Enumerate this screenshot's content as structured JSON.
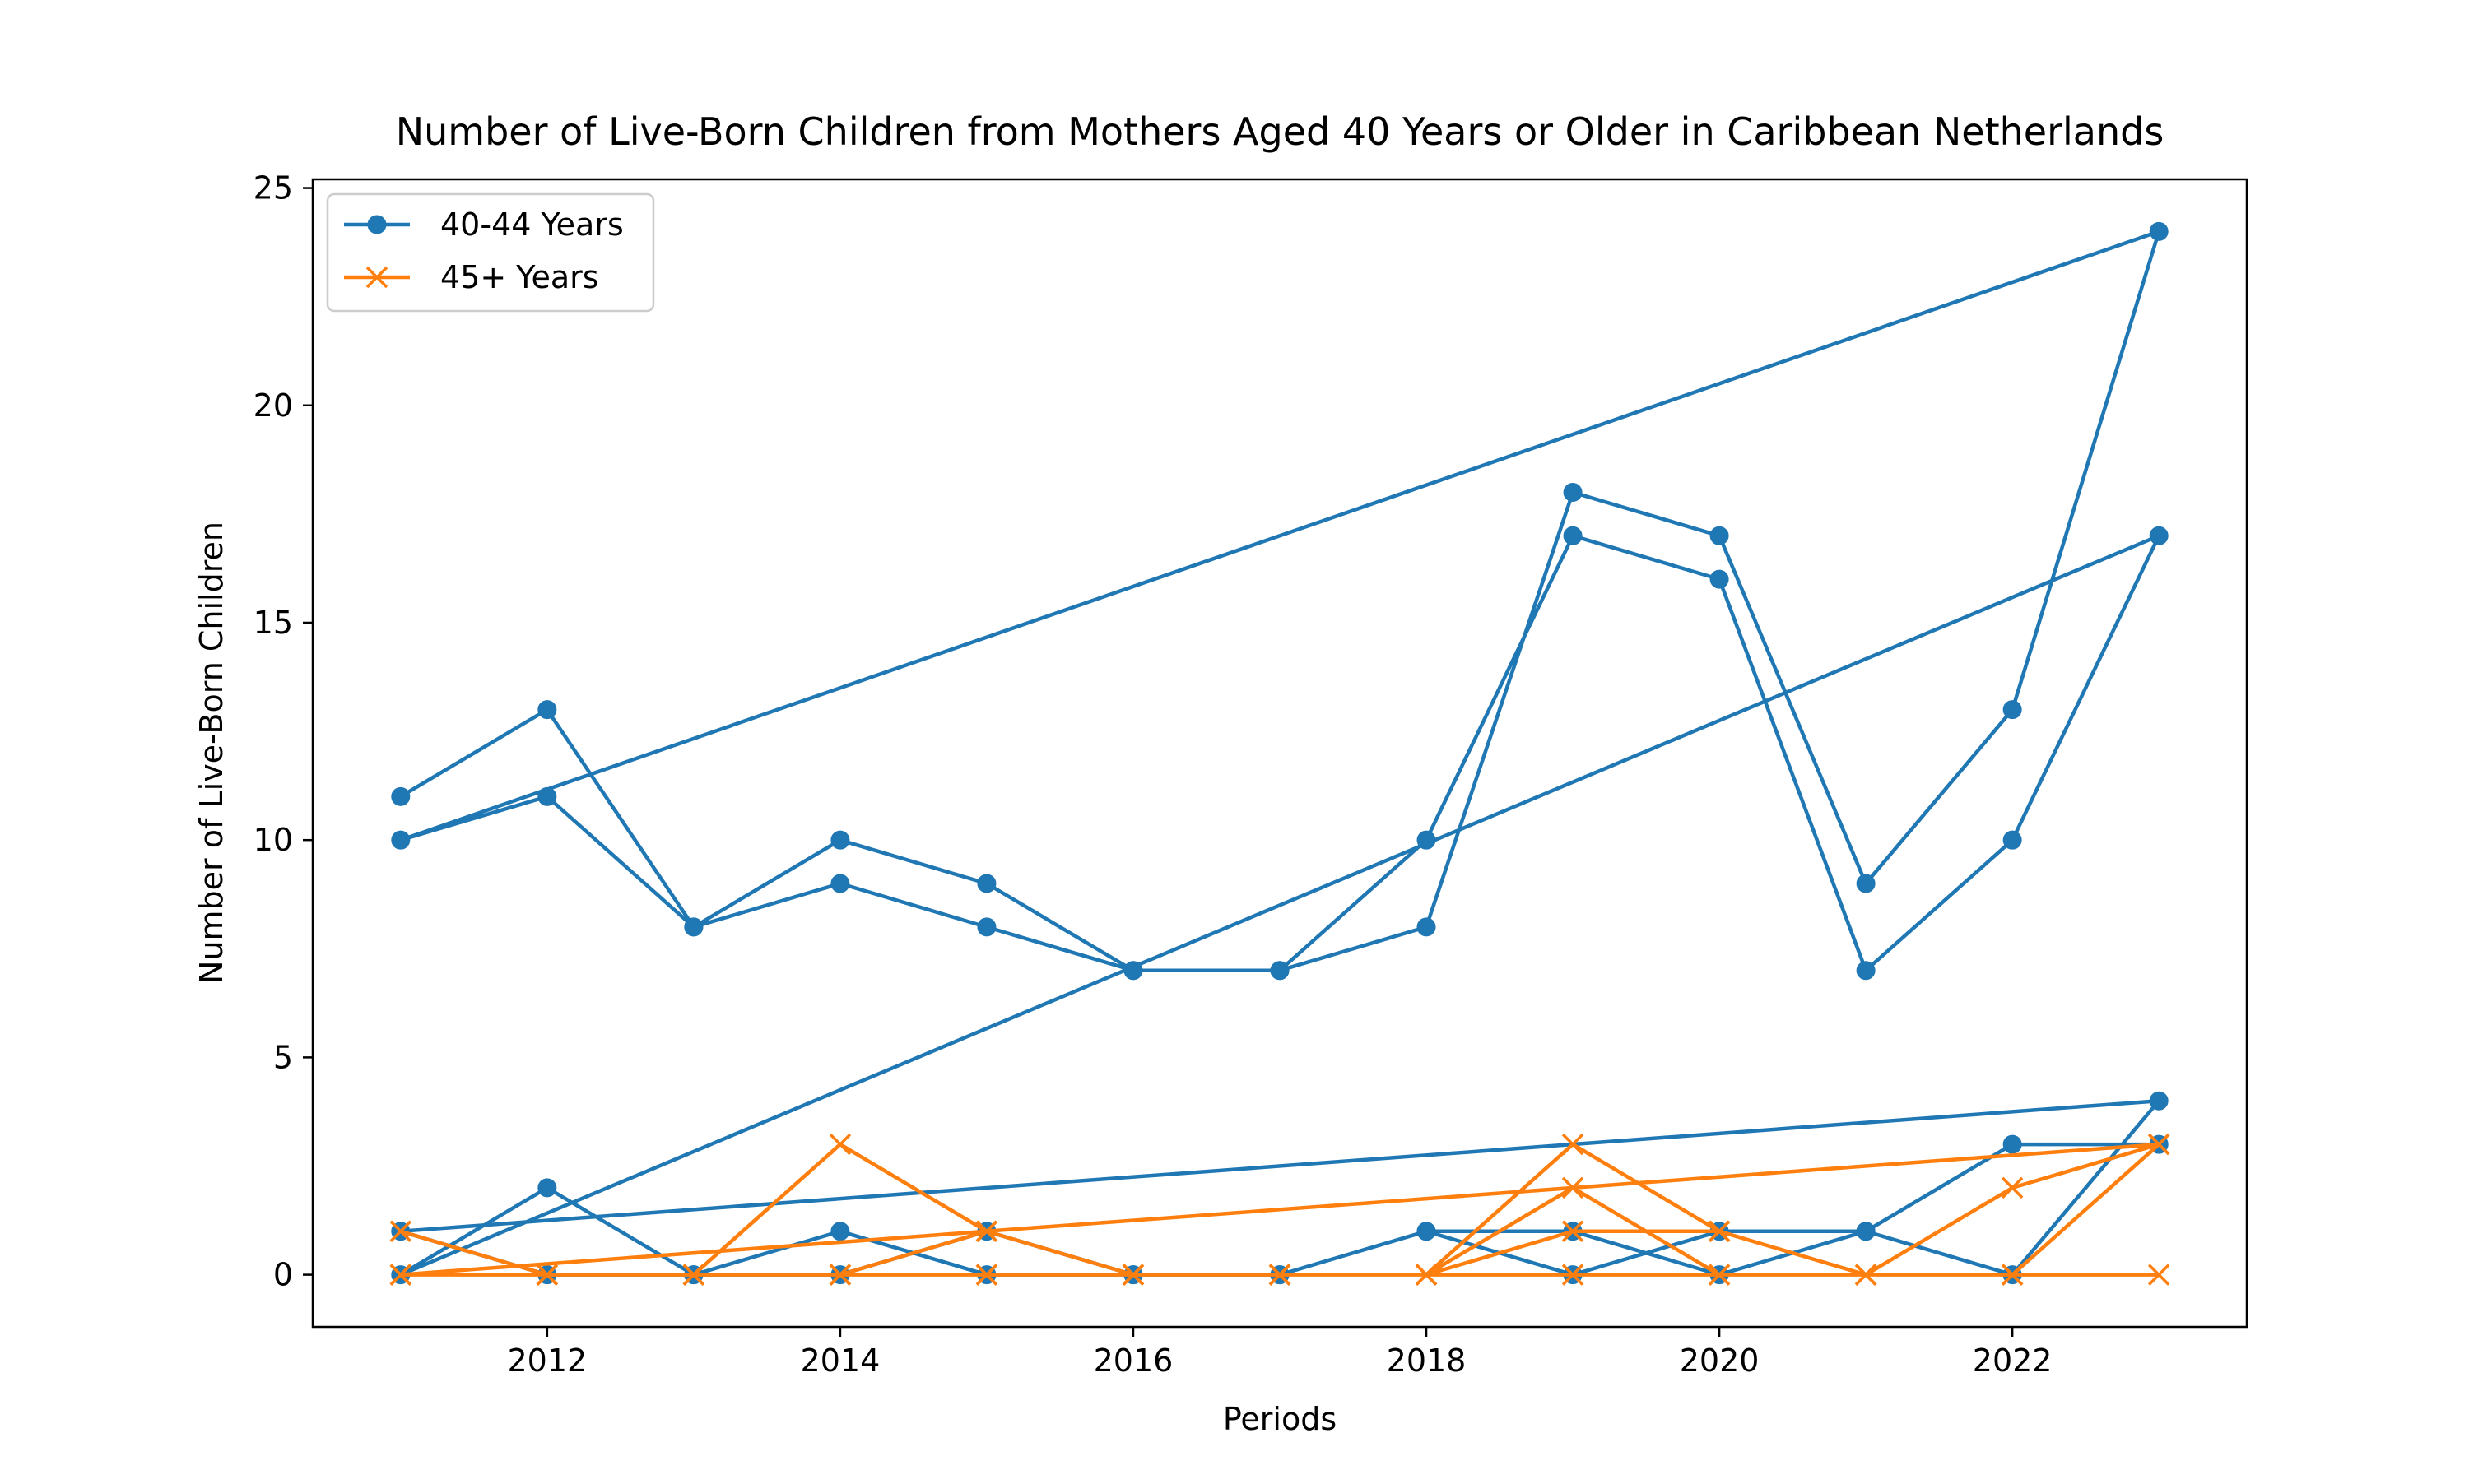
{
  "chart_data": {
    "type": "line",
    "title": "Number of Live-Born Children from Mothers Aged 40 Years or Older in Caribbean Netherlands",
    "xlabel": "Periods",
    "ylabel": "Number of Live-Born Children",
    "xlim": [
      2010.4,
      2023.6
    ],
    "ylim": [
      -1.2,
      25.2
    ],
    "xticks": [
      2012,
      2014,
      2016,
      2018,
      2020,
      2022
    ],
    "yticks": [
      0,
      5,
      10,
      15,
      20,
      25
    ],
    "grid": false,
    "legend_position": "upper-left",
    "series": [
      {
        "name": "40-44 Years",
        "color": "#1f77b4",
        "marker": "circle",
        "x": [
          2011,
          2012,
          2013,
          2014,
          2015,
          2016,
          2017,
          2018,
          2019,
          2020,
          2021,
          2022,
          2023,
          2011,
          2012,
          2013,
          2014,
          2015,
          2016,
          2017,
          2018,
          2019,
          2020,
          2021,
          2022,
          2023,
          2011,
          2012,
          2013,
          2014,
          2015,
          2016,
          2017,
          2018,
          2019,
          2020,
          2021,
          2022,
          2023,
          2011,
          2012,
          2013,
          2014,
          2015,
          2016,
          2017,
          2018,
          2019,
          2020,
          2021,
          2022,
          2023
        ],
        "values": [
          11,
          13,
          8,
          10,
          9,
          7,
          7,
          8,
          18,
          17,
          9,
          13,
          24,
          10,
          11,
          8,
          9,
          8,
          7,
          7,
          10,
          17,
          16,
          7,
          10,
          17,
          0,
          2,
          0,
          1,
          0,
          0,
          0,
          1,
          1,
          0,
          1,
          0,
          4,
          1,
          0,
          0,
          0,
          1,
          0,
          0,
          1,
          0,
          1,
          1,
          3,
          3
        ]
      },
      {
        "name": "45+ Years",
        "color": "#ff7f0e",
        "marker": "x",
        "x": [
          2011,
          2012,
          2013,
          2014,
          2015,
          2016,
          2017,
          2018,
          2019,
          2020,
          2021,
          2022,
          2023,
          2011,
          2012,
          2013,
          2014,
          2015,
          2016,
          2017,
          2018,
          2019,
          2020,
          2021,
          2022,
          2023,
          2011,
          2012,
          2013,
          2014,
          2015,
          2016,
          2017,
          2018,
          2019,
          2020,
          2021,
          2022,
          2023,
          2011,
          2012,
          2013,
          2014,
          2015,
          2016,
          2017,
          2018,
          2019,
          2020,
          2021,
          2022,
          2023
        ],
        "values": [
          1,
          0,
          0,
          3,
          1,
          0,
          0,
          0,
          3,
          1,
          0,
          2,
          3,
          0,
          0,
          0,
          0,
          0,
          0,
          0,
          0,
          2,
          0,
          0,
          0,
          3,
          0,
          0,
          0,
          0,
          1,
          0,
          0,
          0,
          1,
          1,
          0,
          0,
          3,
          0,
          0,
          0,
          0,
          0,
          0,
          0,
          0,
          0,
          0,
          0,
          0,
          0
        ]
      }
    ]
  }
}
